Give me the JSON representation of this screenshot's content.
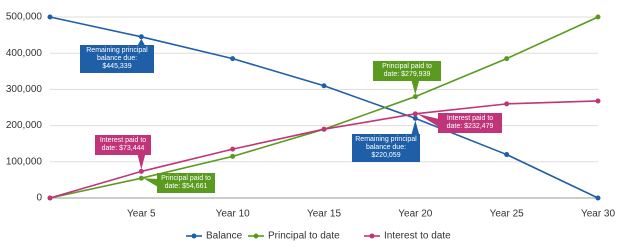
{
  "chart_data": {
    "type": "line",
    "categories": [
      null,
      "Year 5",
      "Year 10",
      "Year 15",
      "Year 20",
      "Year 25",
      "Year 30"
    ],
    "series": [
      {
        "name": "Balance",
        "color": "#1f5fa8",
        "values": [
          500000,
          445339,
          385000,
          310000,
          220059,
          120000,
          0
        ],
        "value_labels": [
          null,
          "Remaining principal balance due: $445,339",
          null,
          null,
          "Remaining principal balance due: $220,059",
          null,
          null
        ]
      },
      {
        "name": "Principal to date",
        "color": "#5a9a1f",
        "values": [
          0,
          54661,
          115000,
          190000,
          279939,
          385000,
          500000
        ],
        "value_labels": [
          null,
          "Principal paid to date: $54,661",
          null,
          null,
          "Principal paid to date: $279,939",
          null,
          null
        ]
      },
      {
        "name": "Interest to date",
        "color": "#c0357a",
        "values": [
          0,
          73444,
          135000,
          190000,
          232479,
          260000,
          268000
        ],
        "value_labels": [
          null,
          "Interest paid to date: $73,444",
          null,
          null,
          "Interest paid to date: $232,479",
          null,
          null
        ]
      }
    ],
    "ylim": [
      0,
      500000
    ],
    "yticks": [
      0,
      {
        "value": 100000,
        "label": "100,000"
      },
      {
        "value": 200000,
        "label": "200,000"
      },
      {
        "value": 300000,
        "label": "300,000"
      },
      {
        "value": 400000,
        "label": "400,000"
      },
      {
        "value": 500000,
        "label": "500,000"
      }
    ],
    "grid": true,
    "legend": "bottom"
  }
}
